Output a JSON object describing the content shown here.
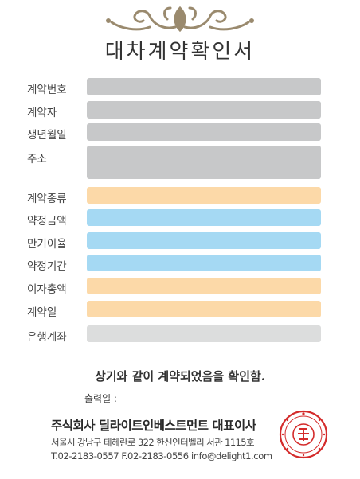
{
  "document": {
    "title": "대차계약확인서",
    "confirmation_text": "상기와 같이 계약되었음을 확인함.",
    "print_date_label": "출력일 :",
    "print_date_value": ""
  },
  "fields": [
    {
      "label": "계약번호",
      "value": "",
      "color": "#c7c8c9"
    },
    {
      "label": "계약자",
      "value": "",
      "color": "#c7c8c9"
    },
    {
      "label": "생년월일",
      "value": "",
      "color": "#c7c8c9"
    },
    {
      "label": "주소",
      "value": "",
      "color": "#c7c8c9"
    },
    {
      "label": "계약종류",
      "value": "",
      "color": "#fcd9a8"
    },
    {
      "label": "약정금액",
      "value": "",
      "color": "#a5d9f3"
    },
    {
      "label": "만기이율",
      "value": "",
      "color": "#a5d9f3"
    },
    {
      "label": "약정기간",
      "value": "",
      "color": "#a5d9f3"
    },
    {
      "label": "이자총액",
      "value": "",
      "color": "#fcd9a8"
    },
    {
      "label": "계약일",
      "value": "",
      "color": "#fcd9a8"
    },
    {
      "label": "은행계좌",
      "value": "",
      "color": "#dcdddd"
    }
  ],
  "footer": {
    "company": "주식회사 딜라이트인베스트먼트 대표이사",
    "address": "서울시 강남구 테헤란로 322 한신인터벨리 서관 1115호",
    "contact": "T.02-2183-0557  F.02-2183-0556  info@delight1.com"
  },
  "colors": {
    "ornament": "#9a8a6e",
    "seal": "#d42b2b"
  }
}
